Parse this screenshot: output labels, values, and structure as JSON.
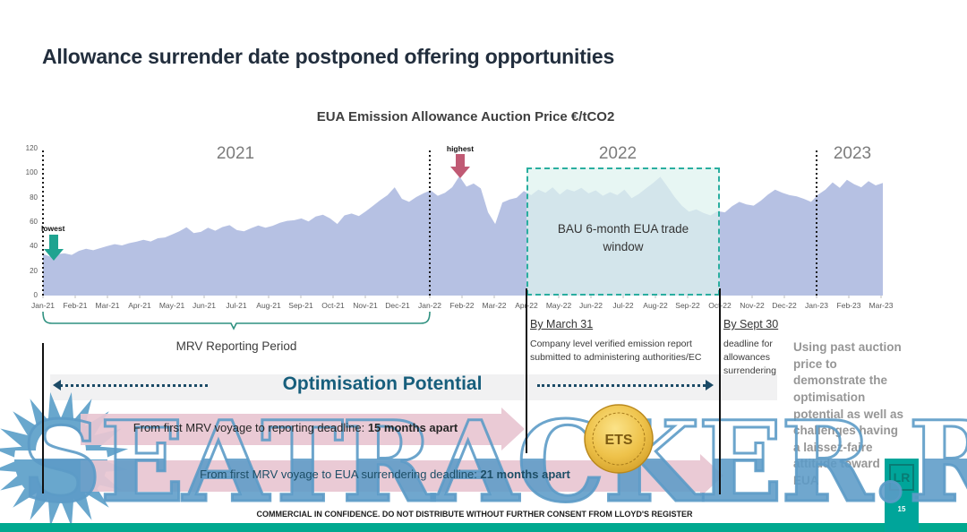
{
  "slide": {
    "title": "Allowance surrender date postponed offering opportunities",
    "footer": "COMMERCIAL IN CONFIDENCE. DO NOT DISTRIBUTE WITHOUT FURTHER CONSENT FROM LLOYD'S REGISTER",
    "page_number": "15",
    "watermark": "SEATRACKER.RU",
    "logo": "LR"
  },
  "chart_data": {
    "type": "area",
    "title": "EUA Emission Allowance Auction Price €/tCO2",
    "unit": "€/tCO2",
    "ylim": [
      0,
      120
    ],
    "y_ticks": [
      0,
      20,
      40,
      60,
      80,
      100,
      120
    ],
    "x_labels": [
      "Jan-21",
      "Feb-21",
      "Mar-21",
      "Apr-21",
      "May-21",
      "Jun-21",
      "Jul-21",
      "Aug-21",
      "Sep-21",
      "Oct-21",
      "Nov-21",
      "Dec-21",
      "Jan-22",
      "Feb-22",
      "Mar-22",
      "Apr-22",
      "May-22",
      "Jun-22",
      "Jul-22",
      "Aug-22",
      "Sep-22",
      "Oct-22",
      "Nov-22",
      "Dec-22",
      "Jan-23",
      "Feb-23",
      "Mar-23"
    ],
    "year_labels": [
      "2021",
      "2022",
      "2023"
    ],
    "grid": false,
    "legend": "none",
    "series": [
      {
        "name": "EUA auction price",
        "cadence": "weekly",
        "values": [
          34.0,
          31.8,
          33.8,
          34.5,
          33.2,
          36.5,
          38.2,
          37.0,
          38.8,
          40.5,
          42.0,
          41.0,
          42.8,
          44.0,
          45.5,
          44.2,
          46.8,
          47.5,
          50.0,
          52.5,
          55.8,
          51.0,
          52.0,
          55.5,
          53.0,
          56.0,
          57.5,
          53.5,
          52.5,
          55.0,
          57.2,
          55.5,
          57.0,
          59.5,
          61.0,
          61.5,
          63.0,
          60.5,
          64.5,
          66.0,
          63.0,
          58.5,
          65.5,
          67.0,
          65.0,
          69.0,
          73.5,
          78.0,
          82.0,
          88.5,
          79.0,
          76.5,
          80.5,
          83.5,
          86.0,
          81.5,
          84.0,
          88.5,
          97.5,
          89.0,
          91.5,
          87.5,
          68.0,
          58.5,
          76.0,
          78.5,
          80.0,
          85.5,
          82.0,
          86.5,
          84.0,
          88.5,
          82.5,
          87.0,
          85.0,
          88.0,
          83.5,
          86.0,
          81.5,
          84.5,
          82.0,
          86.5,
          79.5,
          83.0,
          87.5,
          92.0,
          97.0,
          89.0,
          80.5,
          73.5,
          68.5,
          70.5,
          67.5,
          65.5,
          69.0,
          68.0,
          73.0,
          76.5,
          74.5,
          73.5,
          77.5,
          82.5,
          86.5,
          84.0,
          82.0,
          81.0,
          79.0,
          76.5,
          82.5,
          86.5,
          92.5,
          88.0,
          94.5,
          91.0,
          88.5,
          93.5,
          90.0,
          92.0
        ]
      }
    ],
    "annotations": {
      "lowest": {
        "label": "lowest",
        "at": "Jan-21",
        "value": 31.8
      },
      "highest": {
        "label": "highest",
        "at": "Feb-22",
        "value": 97.5
      },
      "trade_window": {
        "label": "BAU 6-month EUA trade window",
        "from": "Apr-22",
        "to": "Oct-22"
      }
    },
    "colors": {
      "area": "#b6c1e3",
      "window_border": "#2aaea0",
      "window_fill": "#def2ef",
      "lowest_arrow": "#1fa390",
      "highest_arrow": "#c05a74"
    }
  },
  "timeline": {
    "mrv_label": "MRV Reporting Period",
    "march_deadline": {
      "title": "By March 31",
      "desc": "Company level verified emission report submitted to administering authorities/EC"
    },
    "sept_deadline": {
      "title": "By Sept 30",
      "desc": "deadline for allowances surrendering"
    },
    "optimisation_label": "Optimisation Potential",
    "arrow1": {
      "prefix": "From first MRV voyage to reporting deadline: ",
      "bold": "15 months apart"
    },
    "arrow2": {
      "prefix": "From first MRV voyage to EUA surrendering deadline:  ",
      "bold": "21 months apart"
    },
    "coin_label": "ETS"
  },
  "sidebar_note": "Using past auction price to demonstrate the optimisation potential as well as challenges having a laissez-faire attitude toward EUA"
}
